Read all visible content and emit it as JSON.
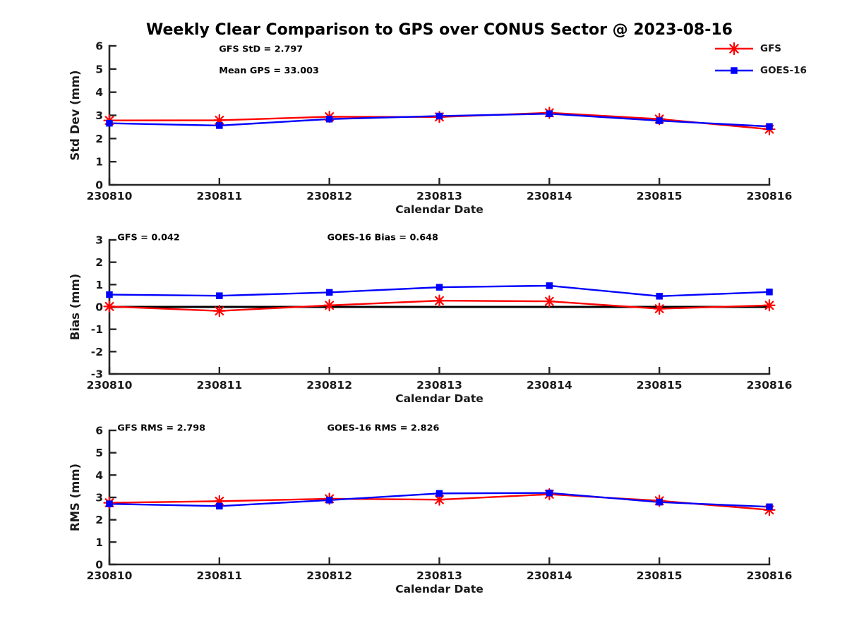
{
  "title": "Weekly Clear Comparison to GPS over CONUS Sector @ 2023-08-16",
  "colors": {
    "gfs": "#ff0000",
    "goes16": "#0000ff",
    "axis": "#262626",
    "text": "#1a1a1a",
    "zero_line": "#000000"
  },
  "legend": {
    "items": [
      {
        "label": "GFS",
        "series": "gfs",
        "marker": "asterisk"
      },
      {
        "label": "GOES-16",
        "series": "goes16",
        "marker": "square"
      }
    ]
  },
  "chart_data": [
    {
      "type": "line",
      "name": "stddev",
      "ylabel": "Std Dev (mm)",
      "xlabel": "Calendar Date",
      "categories": [
        "230810",
        "230811",
        "230812",
        "230813",
        "230814",
        "230815",
        "230816"
      ],
      "ylim": [
        0,
        6
      ],
      "yticks": [
        0,
        1,
        2,
        3,
        4,
        5,
        6
      ],
      "zero_line": false,
      "series": [
        {
          "name": "GFS",
          "color": "#ff0000",
          "marker": "asterisk",
          "values": [
            2.78,
            2.79,
            2.94,
            2.93,
            3.11,
            2.84,
            2.4
          ]
        },
        {
          "name": "GOES-16",
          "color": "#0000ff",
          "marker": "square",
          "values": [
            2.66,
            2.56,
            2.84,
            2.97,
            3.07,
            2.77,
            2.52
          ]
        }
      ],
      "annotations": [
        {
          "text": "GFS StD = 2.797",
          "fx": 0.166,
          "fy": 0.02
        },
        {
          "text": "Mean GPS = 33.003",
          "fx": 0.166,
          "fy": 0.175
        }
      ]
    },
    {
      "type": "line",
      "name": "bias",
      "ylabel": "Bias (mm)",
      "xlabel": "Calendar Date",
      "categories": [
        "230810",
        "230811",
        "230812",
        "230813",
        "230814",
        "230815",
        "230816"
      ],
      "ylim": [
        -3,
        3
      ],
      "yticks": [
        -3,
        -2,
        -1,
        0,
        1,
        2,
        3
      ],
      "zero_line": true,
      "series": [
        {
          "name": "GFS",
          "color": "#ff0000",
          "marker": "asterisk",
          "values": [
            0.02,
            -0.18,
            0.07,
            0.28,
            0.25,
            -0.08,
            0.07
          ]
        },
        {
          "name": "GOES-16",
          "color": "#0000ff",
          "marker": "square",
          "values": [
            0.55,
            0.5,
            0.65,
            0.88,
            0.95,
            0.48,
            0.67
          ]
        }
      ],
      "annotations": [
        {
          "text": "GFS = 0.042",
          "fx": 0.012,
          "fy": -0.02
        },
        {
          "text": "GOES-16 Bias  = 0.648",
          "fx": 0.33,
          "fy": -0.02
        }
      ]
    },
    {
      "type": "line",
      "name": "rms",
      "ylabel": "RMS (mm)",
      "xlabel": "Calendar Date",
      "categories": [
        "230810",
        "230811",
        "230812",
        "230813",
        "230814",
        "230815",
        "230816"
      ],
      "ylim": [
        0,
        6
      ],
      "yticks": [
        0,
        1,
        2,
        3,
        4,
        5,
        6
      ],
      "zero_line": false,
      "series": [
        {
          "name": "GFS",
          "color": "#ff0000",
          "marker": "asterisk",
          "values": [
            2.76,
            2.83,
            2.94,
            2.9,
            3.14,
            2.85,
            2.44
          ]
        },
        {
          "name": "GOES-16",
          "color": "#0000ff",
          "marker": "square",
          "values": [
            2.71,
            2.61,
            2.88,
            3.18,
            3.2,
            2.79,
            2.58
          ]
        }
      ],
      "annotations": [
        {
          "text": "GFS RMS = 2.798",
          "fx": 0.012,
          "fy": -0.02
        },
        {
          "text": "GOES-16 RMS = 2.826",
          "fx": 0.33,
          "fy": -0.02
        }
      ]
    }
  ]
}
